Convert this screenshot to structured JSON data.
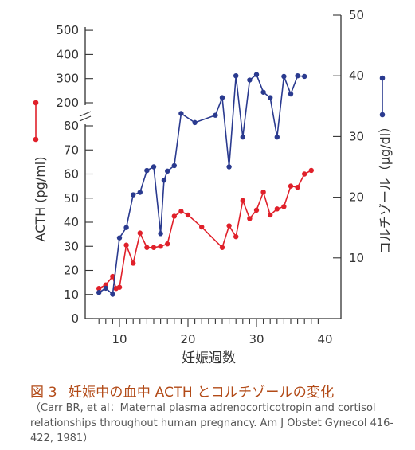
{
  "chart_data": {
    "type": "line",
    "xlabel": "妊娠週数",
    "ylabel_left": "ACTH (pg/ml)",
    "ylabel_right": "コルチゾール（μg/dl）",
    "x_ticks": [
      10,
      20,
      30,
      40
    ],
    "left_ticks_lower": [
      0,
      10,
      20,
      30,
      40,
      50,
      60,
      70,
      80
    ],
    "left_ticks_upper": [
      200,
      300,
      400,
      500
    ],
    "right_ticks": [
      10,
      20,
      30,
      40,
      50
    ],
    "xlim": [
      5,
      40
    ],
    "left_lower_ylim": [
      0,
      80
    ],
    "left_axis_break": "between 80 and 200",
    "right_ylim": [
      0,
      50
    ],
    "grid": false,
    "legend": "line-and-marker symbols beside each axis title",
    "series": [
      {
        "name": "ACTH",
        "axis": "left",
        "color": "#e0202a",
        "points": [
          [
            7,
            12.5
          ],
          [
            8,
            14
          ],
          [
            9,
            17.5
          ],
          [
            9.5,
            12.5
          ],
          [
            10,
            13
          ],
          [
            11,
            30.5
          ],
          [
            12,
            23
          ],
          [
            13,
            35.5
          ],
          [
            14,
            29.5
          ],
          [
            15,
            29.5
          ],
          [
            16,
            30
          ],
          [
            17,
            31
          ],
          [
            18,
            42.5
          ],
          [
            19,
            44.5
          ],
          [
            20,
            43
          ],
          [
            22,
            38
          ],
          [
            25,
            29.5
          ],
          [
            26,
            38.5
          ],
          [
            27,
            34
          ],
          [
            28,
            49
          ],
          [
            29,
            41.5
          ],
          [
            30,
            45
          ],
          [
            31,
            52.5
          ],
          [
            32,
            43
          ],
          [
            33,
            45.5
          ],
          [
            34,
            46.5
          ],
          [
            35,
            55
          ],
          [
            36,
            54.5
          ],
          [
            37,
            60
          ],
          [
            38,
            61.5
          ]
        ]
      },
      {
        "name": "コルチゾール",
        "axis": "right",
        "color": "#2a3a8f",
        "points": [
          [
            7,
            4.3
          ],
          [
            8,
            5
          ],
          [
            9,
            4
          ],
          [
            10,
            13.3
          ],
          [
            11,
            15
          ],
          [
            12,
            20.4
          ],
          [
            13,
            20.8
          ],
          [
            14,
            24.4
          ],
          [
            15,
            25
          ],
          [
            16,
            14
          ],
          [
            16.5,
            22.8
          ],
          [
            17,
            24.3
          ],
          [
            18,
            25.2
          ],
          [
            19,
            33.8
          ],
          [
            21,
            32.3
          ],
          [
            24,
            33.5
          ],
          [
            25,
            36.4
          ],
          [
            26,
            25
          ],
          [
            27,
            40
          ],
          [
            28,
            29.9
          ],
          [
            29,
            39.3
          ],
          [
            30,
            40.2
          ],
          [
            31,
            37.3
          ],
          [
            32,
            36.4
          ],
          [
            33,
            29.9
          ],
          [
            34,
            39.9
          ],
          [
            35,
            37
          ],
          [
            36,
            40
          ],
          [
            37,
            39.9
          ]
        ]
      }
    ]
  },
  "caption": {
    "figure_no": "図 3",
    "title": "妊娠中の血中 ACTH とコルチゾールの変化",
    "note": "（Carr BR, et al：Maternal plasma adrenocorticotropin and cortisol relationships throughout human pregnancy. Am J Obstet Gynecol 416-422, 1981）"
  },
  "colors": {
    "acth": "#e0202a",
    "cortisol": "#2a3a8f",
    "caption": "#b24a17",
    "axis": "#333333"
  }
}
